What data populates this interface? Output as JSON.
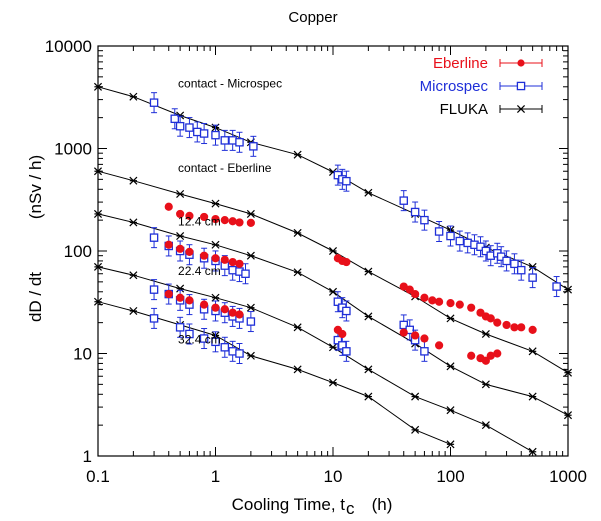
{
  "chart_data": {
    "type": "scatter",
    "title": "Copper",
    "xlabel": "Cooling Time, t",
    "xlabel_sub": "c",
    "xlabel_unit": "(h)",
    "ylabel": "dD / dt",
    "ylabel_unit": "(nSv / h)",
    "xscale": "log",
    "yscale": "log",
    "xlim": [
      0.1,
      1000
    ],
    "ylim": [
      1,
      10000
    ],
    "xticks": [
      {
        "value": 0.1,
        "label": "0.1"
      },
      {
        "value": 1,
        "label": "1"
      },
      {
        "value": 10,
        "label": "10"
      },
      {
        "value": 100,
        "label": "100"
      },
      {
        "value": 1000,
        "label": "1000"
      }
    ],
    "yticks": [
      {
        "value": 1,
        "label": "1"
      },
      {
        "value": 10,
        "label": "10"
      },
      {
        "value": 100,
        "label": "100"
      },
      {
        "value": 1000,
        "label": "1000"
      },
      {
        "value": 10000,
        "label": "10000"
      }
    ],
    "grid": false,
    "legend_position": "top-right",
    "colors": {
      "Eberline": "#e8101a",
      "Microspec": "#1f2fd8",
      "FLUKA": "#000000"
    },
    "legend": [
      "Eberline",
      "Microspec",
      "FLUKA"
    ],
    "annotations": [
      {
        "text": "contact - Microspec",
        "x": 0.48,
        "y": 3950
      },
      {
        "text": "contact - Eberline",
        "x": 0.48,
        "y": 590
      },
      {
        "text": "12.4 cm",
        "x": 0.48,
        "y": 178
      },
      {
        "text": "22.4 cm",
        "x": 0.48,
        "y": 58
      },
      {
        "text": "32.4 cm",
        "x": 0.48,
        "y": 12.5
      }
    ],
    "series": [
      {
        "name": "FLUKA",
        "curves": [
          {
            "label": "contact - Microspec",
            "points": [
              [
                0.1,
                4000
              ],
              [
                0.2,
                3200
              ],
              [
                0.5,
                2100
              ],
              [
                1,
                1600
              ],
              [
                2,
                1150
              ],
              [
                5,
                870
              ],
              [
                10,
                590
              ],
              [
                20,
                370
              ],
              [
                50,
                230
              ],
              [
                100,
                160
              ],
              [
                200,
                108
              ],
              [
                500,
                70
              ],
              [
                1000,
                42
              ]
            ]
          },
          {
            "label": "contact - Eberline",
            "points": [
              [
                0.1,
                600
              ],
              [
                0.2,
                485
              ],
              [
                0.5,
                360
              ],
              [
                1,
                290
              ],
              [
                2,
                230
              ],
              [
                5,
                150
              ],
              [
                10,
                100
              ],
              [
                20,
                63
              ],
              [
                50,
                36
              ],
              [
                100,
                22
              ],
              [
                200,
                15.5
              ],
              [
                500,
                10.5
              ],
              [
                1000,
                6.5
              ]
            ]
          },
          {
            "label": "12.4 cm",
            "points": [
              [
                0.1,
                230
              ],
              [
                0.2,
                190
              ],
              [
                0.5,
                140
              ],
              [
                1,
                115
              ],
              [
                2,
                90
              ],
              [
                5,
                62
              ],
              [
                10,
                40
              ],
              [
                20,
                23
              ],
              [
                50,
                12.5
              ],
              [
                100,
                7.5
              ],
              [
                200,
                5
              ],
              [
                500,
                3.8
              ],
              [
                1000,
                2.5
              ]
            ]
          },
          {
            "label": "22.4 cm",
            "points": [
              [
                0.1,
                70
              ],
              [
                0.2,
                58
              ],
              [
                0.5,
                43
              ],
              [
                1,
                35
              ],
              [
                2,
                28
              ],
              [
                5,
                18
              ],
              [
                10,
                11.5
              ],
              [
                20,
                7
              ],
              [
                50,
                3.8
              ],
              [
                100,
                2.8
              ],
              [
                200,
                2
              ],
              [
                500,
                1.1
              ]
            ]
          },
          {
            "label": "32.4 cm",
            "points": [
              [
                0.1,
                32
              ],
              [
                0.2,
                26
              ],
              [
                0.5,
                19
              ],
              [
                1,
                15
              ],
              [
                2,
                9.5
              ],
              [
                5,
                7
              ],
              [
                10,
                5.2
              ],
              [
                20,
                3.8
              ],
              [
                50,
                1.8
              ],
              [
                100,
                1.3
              ]
            ]
          }
        ]
      },
      {
        "name": "Microspec",
        "curves": [
          {
            "label": "contact - Microspec",
            "points": [
              [
                0.3,
                2800
              ],
              [
                0.45,
                1950
              ],
              [
                0.5,
                1650
              ],
              [
                0.6,
                1600
              ],
              [
                0.7,
                1450
              ],
              [
                0.8,
                1400
              ],
              [
                1,
                1350
              ],
              [
                1.2,
                1200
              ],
              [
                1.4,
                1200
              ],
              [
                1.6,
                1150
              ],
              [
                2.1,
                1050
              ],
              [
                11,
                550
              ],
              [
                12,
                500
              ],
              [
                13,
                480
              ],
              [
                40,
                310
              ],
              [
                50,
                240
              ],
              [
                60,
                200
              ],
              [
                80,
                155
              ],
              [
                100,
                140
              ],
              [
                120,
                125
              ],
              [
                140,
                120
              ],
              [
                160,
                115
              ],
              [
                180,
                110
              ],
              [
                200,
                100
              ],
              [
                220,
                90
              ],
              [
                250,
                95
              ],
              [
                270,
                88
              ],
              [
                300,
                80
              ],
              [
                350,
                75
              ],
              [
                400,
                65
              ],
              [
                500,
                55
              ],
              [
                800,
                45
              ]
            ]
          },
          {
            "label": "12.4 cm",
            "points": [
              [
                0.3,
                135
              ],
              [
                0.4,
                112
              ],
              [
                0.5,
                100
              ],
              [
                0.6,
                92
              ],
              [
                0.8,
                85
              ],
              [
                1,
                80
              ],
              [
                1.2,
                72
              ],
              [
                1.4,
                65
              ],
              [
                1.6,
                63
              ],
              [
                1.8,
                60
              ],
              [
                11,
                32
              ],
              [
                12,
                28
              ],
              [
                13,
                26
              ],
              [
                40,
                19
              ],
              [
                45,
                17
              ],
              [
                50,
                13.5
              ],
              [
                60,
                10.5
              ]
            ]
          },
          {
            "label": "22.4 cm",
            "points": [
              [
                0.3,
                42
              ],
              [
                0.4,
                38
              ],
              [
                0.5,
                33
              ],
              [
                0.6,
                30
              ],
              [
                0.8,
                27
              ],
              [
                1,
                26
              ],
              [
                1.2,
                25
              ],
              [
                1.4,
                23
              ],
              [
                1.6,
                22
              ],
              [
                2,
                20.5
              ],
              [
                11,
                13.5
              ],
              [
                12,
                12
              ],
              [
                13,
                10.5
              ]
            ]
          },
          {
            "label": "32.4 cm",
            "points": [
              [
                0.3,
                22
              ],
              [
                0.5,
                18
              ],
              [
                0.6,
                15.5
              ],
              [
                0.8,
                14
              ],
              [
                1,
                13
              ],
              [
                1.2,
                11.5
              ],
              [
                1.4,
                10.5
              ],
              [
                1.6,
                10
              ]
            ]
          }
        ]
      },
      {
        "name": "Eberline",
        "curves": [
          {
            "label": "contact - Eberline",
            "points": [
              [
                0.4,
                270
              ],
              [
                0.5,
                230
              ],
              [
                0.6,
                220
              ],
              [
                0.8,
                215
              ],
              [
                1,
                205
              ],
              [
                1.2,
                200
              ],
              [
                1.4,
                195
              ],
              [
                1.6,
                190
              ],
              [
                2,
                188
              ]
            ]
          },
          {
            "label": "12.4 cm",
            "points": [
              [
                0.4,
                115
              ],
              [
                0.5,
                105
              ],
              [
                0.6,
                98
              ],
              [
                0.8,
                90
              ],
              [
                1,
                85
              ],
              [
                1.2,
                82
              ],
              [
                1.4,
                78
              ],
              [
                1.6,
                75
              ],
              [
                11,
                85
              ],
              [
                12,
                80
              ],
              [
                13,
                78
              ],
              [
                40,
                45
              ],
              [
                45,
                42
              ],
              [
                50,
                38
              ],
              [
                60,
                35
              ],
              [
                70,
                33
              ],
              [
                80,
                32
              ],
              [
                100,
                31
              ],
              [
                120,
                30
              ],
              [
                150,
                28
              ],
              [
                180,
                25
              ],
              [
                200,
                23
              ],
              [
                220,
                22
              ],
              [
                250,
                20
              ],
              [
                300,
                19
              ],
              [
                350,
                18
              ],
              [
                400,
                18
              ],
              [
                500,
                17
              ]
            ]
          },
          {
            "label": "22.4 cm",
            "points": [
              [
                0.4,
                38
              ],
              [
                0.5,
                35
              ],
              [
                0.6,
                33
              ],
              [
                0.8,
                30
              ],
              [
                1,
                28
              ],
              [
                1.2,
                27
              ],
              [
                1.4,
                25
              ],
              [
                1.6,
                24
              ],
              [
                11,
                17
              ],
              [
                12,
                15.5
              ],
              [
                40,
                16
              ],
              [
                50,
                15
              ],
              [
                60,
                14
              ],
              [
                80,
                12
              ],
              [
                150,
                9.5
              ],
              [
                180,
                9
              ],
              [
                200,
                8.5
              ],
              [
                220,
                9.5
              ],
              [
                250,
                10
              ]
            ]
          }
        ]
      }
    ]
  }
}
